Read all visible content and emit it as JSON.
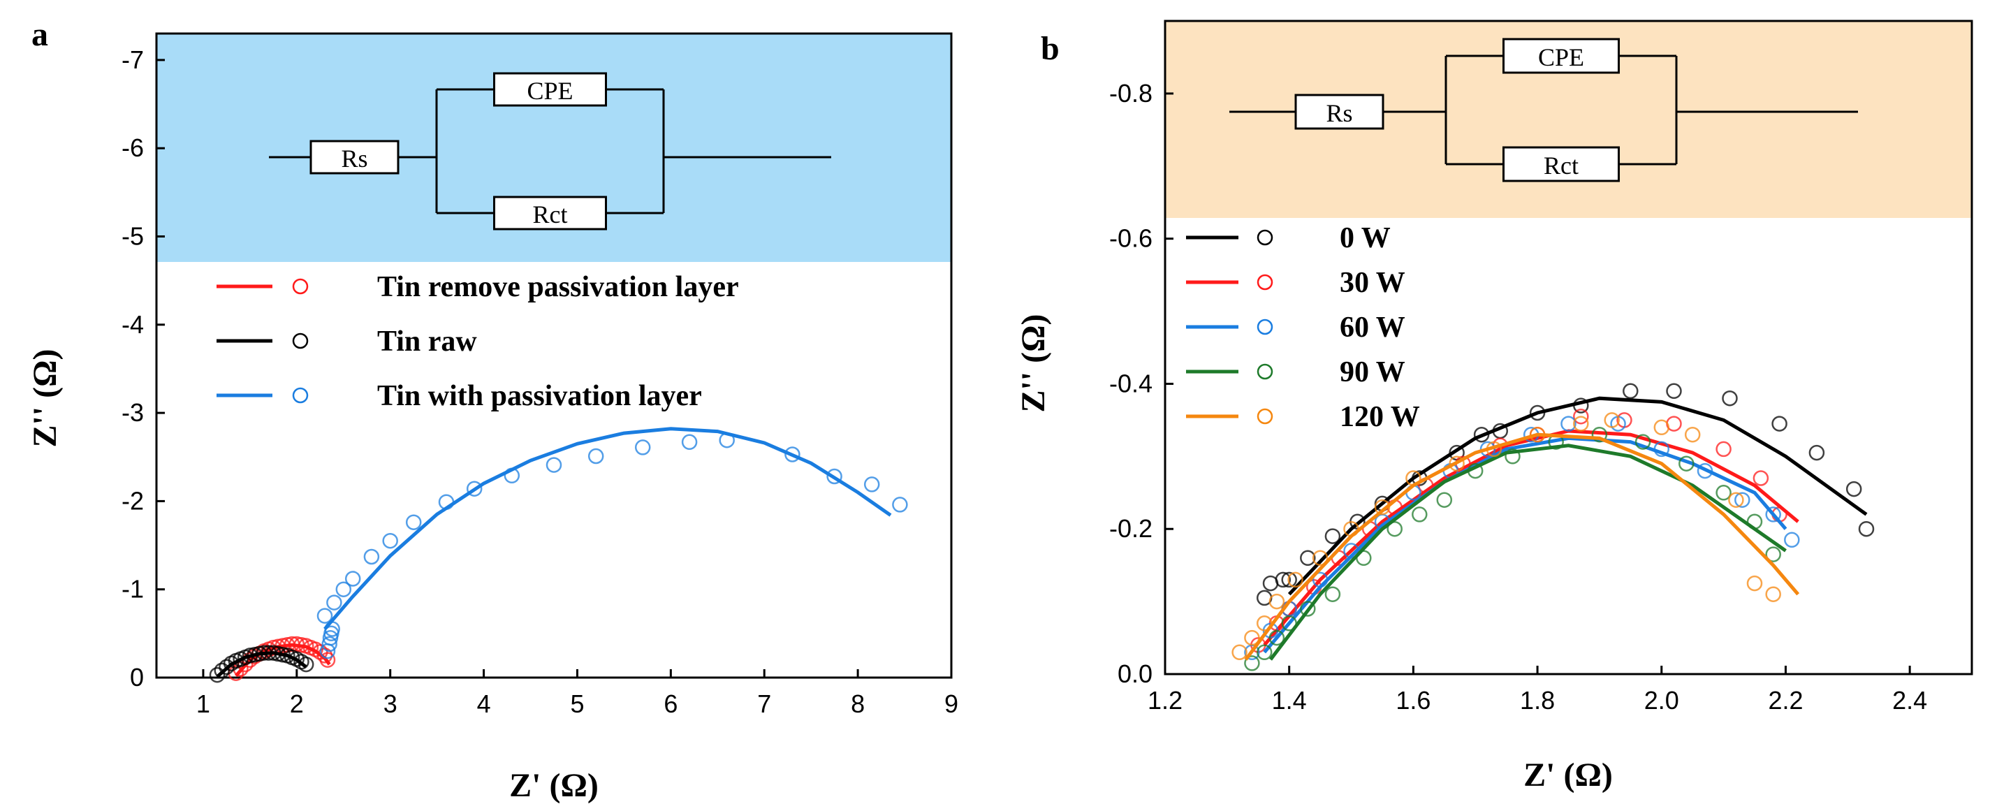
{
  "chart_data": [
    {
      "panel": "a",
      "type": "scatter",
      "xlabel": "Z' (Ω)",
      "ylabel": "Z'' (Ω)",
      "xlim": [
        0.5,
        9
      ],
      "ylim": [
        0,
        -7.3
      ],
      "xticks": [
        1,
        2,
        3,
        4,
        5,
        6,
        7,
        8,
        9
      ],
      "yticks": [
        0,
        -1,
        -2,
        -3,
        -4,
        -5,
        -6,
        -7
      ],
      "inset_color": "#a9dcf8",
      "circuit": {
        "rs": "Rs",
        "cpe": "CPE",
        "rct": "Rct"
      },
      "series": [
        {
          "name": "Tin remove passivation layer",
          "color": "#ff1a1a",
          "points": [
            [
              1.35,
              -0.05
            ],
            [
              1.4,
              -0.1
            ],
            [
              1.45,
              -0.15
            ],
            [
              1.5,
              -0.2
            ],
            [
              1.55,
              -0.24
            ],
            [
              1.6,
              -0.27
            ],
            [
              1.65,
              -0.3
            ],
            [
              1.7,
              -0.32
            ],
            [
              1.75,
              -0.34
            ],
            [
              1.8,
              -0.35
            ],
            [
              1.85,
              -0.36
            ],
            [
              1.9,
              -0.37
            ],
            [
              1.95,
              -0.38
            ],
            [
              2.0,
              -0.38
            ],
            [
              2.05,
              -0.37
            ],
            [
              2.1,
              -0.36
            ],
            [
              2.15,
              -0.34
            ],
            [
              2.2,
              -0.32
            ],
            [
              2.25,
              -0.29
            ],
            [
              2.3,
              -0.25
            ],
            [
              2.33,
              -0.2
            ]
          ],
          "fit": [
            [
              1.35,
              -0.02
            ],
            [
              1.5,
              -0.2
            ],
            [
              1.65,
              -0.3
            ],
            [
              1.8,
              -0.35
            ],
            [
              1.95,
              -0.37
            ],
            [
              2.1,
              -0.35
            ],
            [
              2.2,
              -0.3
            ],
            [
              2.3,
              -0.22
            ],
            [
              2.35,
              -0.15
            ]
          ]
        },
        {
          "name": "Tin raw",
          "color": "#000000",
          "points": [
            [
              1.15,
              -0.03
            ],
            [
              1.2,
              -0.08
            ],
            [
              1.25,
              -0.12
            ],
            [
              1.3,
              -0.16
            ],
            [
              1.35,
              -0.19
            ],
            [
              1.4,
              -0.21
            ],
            [
              1.45,
              -0.23
            ],
            [
              1.5,
              -0.25
            ],
            [
              1.55,
              -0.26
            ],
            [
              1.6,
              -0.27
            ],
            [
              1.65,
              -0.28
            ],
            [
              1.7,
              -0.28
            ],
            [
              1.75,
              -0.28
            ],
            [
              1.8,
              -0.27
            ],
            [
              1.85,
              -0.26
            ],
            [
              1.9,
              -0.25
            ],
            [
              1.95,
              -0.23
            ],
            [
              2.0,
              -0.21
            ],
            [
              2.05,
              -0.18
            ],
            [
              2.1,
              -0.15
            ]
          ],
          "fit": [
            [
              1.15,
              -0.01
            ],
            [
              1.3,
              -0.15
            ],
            [
              1.45,
              -0.23
            ],
            [
              1.6,
              -0.27
            ],
            [
              1.75,
              -0.28
            ],
            [
              1.9,
              -0.25
            ],
            [
              2.0,
              -0.2
            ],
            [
              2.1,
              -0.12
            ]
          ]
        },
        {
          "name": "Tin with passivation layer",
          "color": "#1a7de0",
          "points": [
            [
              2.33,
              -0.3
            ],
            [
              2.35,
              -0.38
            ],
            [
              2.36,
              -0.45
            ],
            [
              2.37,
              -0.5
            ],
            [
              2.38,
              -0.55
            ],
            [
              2.3,
              -0.7
            ],
            [
              2.4,
              -0.85
            ],
            [
              2.5,
              -1.0
            ],
            [
              2.6,
              -1.12
            ],
            [
              2.8,
              -1.37
            ],
            [
              3.0,
              -1.55
            ],
            [
              3.25,
              -1.76
            ],
            [
              3.6,
              -1.99
            ],
            [
              3.9,
              -2.14
            ],
            [
              4.3,
              -2.29
            ],
            [
              4.75,
              -2.41
            ],
            [
              5.2,
              -2.51
            ],
            [
              5.7,
              -2.61
            ],
            [
              6.2,
              -2.67
            ],
            [
              6.6,
              -2.69
            ],
            [
              7.3,
              -2.53
            ],
            [
              7.75,
              -2.28
            ],
            [
              8.15,
              -2.19
            ],
            [
              8.45,
              -1.96
            ]
          ],
          "fit": [
            [
              2.3,
              -0.55
            ],
            [
              2.6,
              -0.92
            ],
            [
              3.0,
              -1.38
            ],
            [
              3.5,
              -1.85
            ],
            [
              4.0,
              -2.2
            ],
            [
              4.5,
              -2.46
            ],
            [
              5.0,
              -2.65
            ],
            [
              5.5,
              -2.77
            ],
            [
              6.0,
              -2.82
            ],
            [
              6.5,
              -2.79
            ],
            [
              7.0,
              -2.66
            ],
            [
              7.5,
              -2.43
            ],
            [
              8.0,
              -2.1
            ],
            [
              8.35,
              -1.84
            ]
          ]
        }
      ]
    },
    {
      "panel": "b",
      "type": "scatter",
      "xlabel": "Z' (Ω)",
      "ylabel": "Z'' (Ω)",
      "xlim": [
        1.2,
        2.5
      ],
      "ylim": [
        0,
        -0.9
      ],
      "xticks": [
        "1.2",
        "1.4",
        "1.6",
        "1.8",
        "2.0",
        "2.2",
        "2.4"
      ],
      "yticks": [
        "0.0",
        "-0.2",
        "-0.4",
        "-0.6",
        "-0.8"
      ],
      "inset_color": "#fde3c0",
      "circuit": {
        "rs": "Rs",
        "cpe": "CPE",
        "rct": "Rct"
      },
      "series": [
        {
          "name": "0 W",
          "color": "#000000",
          "points": [
            [
              1.36,
              -0.105
            ],
            [
              1.37,
              -0.125
            ],
            [
              1.39,
              -0.13
            ],
            [
              1.4,
              -0.13
            ],
            [
              1.43,
              -0.16
            ],
            [
              1.47,
              -0.19
            ],
            [
              1.51,
              -0.21
            ],
            [
              1.55,
              -0.235
            ],
            [
              1.61,
              -0.27
            ],
            [
              1.67,
              -0.305
            ],
            [
              1.71,
              -0.33
            ],
            [
              1.74,
              -0.335
            ],
            [
              1.8,
              -0.36
            ],
            [
              1.87,
              -0.37
            ],
            [
              1.95,
              -0.39
            ],
            [
              2.02,
              -0.39
            ],
            [
              2.11,
              -0.38
            ],
            [
              2.19,
              -0.345
            ],
            [
              2.25,
              -0.305
            ],
            [
              2.31,
              -0.255
            ],
            [
              2.33,
              -0.2
            ]
          ],
          "fit": [
            [
              1.4,
              -0.11
            ],
            [
              1.5,
              -0.2
            ],
            [
              1.6,
              -0.27
            ],
            [
              1.7,
              -0.325
            ],
            [
              1.8,
              -0.36
            ],
            [
              1.9,
              -0.38
            ],
            [
              2.0,
              -0.375
            ],
            [
              2.1,
              -0.35
            ],
            [
              2.2,
              -0.3
            ],
            [
              2.33,
              -0.22
            ]
          ]
        },
        {
          "name": "30 W",
          "color": "#ff1a1a",
          "points": [
            [
              1.35,
              -0.04
            ],
            [
              1.38,
              -0.07
            ],
            [
              1.4,
              -0.09
            ],
            [
              1.44,
              -0.12
            ],
            [
              1.48,
              -0.16
            ],
            [
              1.53,
              -0.2
            ],
            [
              1.57,
              -0.23
            ],
            [
              1.62,
              -0.26
            ],
            [
              1.68,
              -0.29
            ],
            [
              1.74,
              -0.315
            ],
            [
              1.8,
              -0.33
            ],
            [
              1.87,
              -0.355
            ],
            [
              1.94,
              -0.35
            ],
            [
              2.02,
              -0.345
            ],
            [
              2.1,
              -0.31
            ],
            [
              2.16,
              -0.27
            ],
            [
              2.19,
              -0.22
            ]
          ],
          "fit": [
            [
              1.36,
              -0.04
            ],
            [
              1.45,
              -0.13
            ],
            [
              1.55,
              -0.21
            ],
            [
              1.65,
              -0.27
            ],
            [
              1.75,
              -0.315
            ],
            [
              1.85,
              -0.335
            ],
            [
              1.95,
              -0.33
            ],
            [
              2.05,
              -0.305
            ],
            [
              2.15,
              -0.26
            ],
            [
              2.22,
              -0.21
            ]
          ]
        },
        {
          "name": "60 W",
          "color": "#1a7de0",
          "points": [
            [
              1.34,
              -0.03
            ],
            [
              1.37,
              -0.06
            ],
            [
              1.4,
              -0.09
            ],
            [
              1.45,
              -0.13
            ],
            [
              1.5,
              -0.17
            ],
            [
              1.55,
              -0.21
            ],
            [
              1.6,
              -0.25
            ],
            [
              1.66,
              -0.28
            ],
            [
              1.72,
              -0.31
            ],
            [
              1.79,
              -0.33
            ],
            [
              1.85,
              -0.345
            ],
            [
              1.93,
              -0.345
            ],
            [
              2.0,
              -0.31
            ],
            [
              2.07,
              -0.28
            ],
            [
              2.13,
              -0.24
            ],
            [
              2.18,
              -0.22
            ],
            [
              2.21,
              -0.185
            ]
          ],
          "fit": [
            [
              1.36,
              -0.03
            ],
            [
              1.45,
              -0.12
            ],
            [
              1.55,
              -0.205
            ],
            [
              1.65,
              -0.265
            ],
            [
              1.75,
              -0.31
            ],
            [
              1.85,
              -0.325
            ],
            [
              1.95,
              -0.32
            ],
            [
              2.05,
              -0.29
            ],
            [
              2.15,
              -0.25
            ],
            [
              2.2,
              -0.2
            ]
          ]
        },
        {
          "name": "90 W",
          "color": "#1e7a2a",
          "points": [
            [
              1.34,
              -0.015
            ],
            [
              1.36,
              -0.03
            ],
            [
              1.38,
              -0.05
            ],
            [
              1.4,
              -0.07
            ],
            [
              1.43,
              -0.09
            ],
            [
              1.47,
              -0.11
            ],
            [
              1.52,
              -0.16
            ],
            [
              1.57,
              -0.2
            ],
            [
              1.61,
              -0.22
            ],
            [
              1.65,
              -0.24
            ],
            [
              1.7,
              -0.28
            ],
            [
              1.76,
              -0.3
            ],
            [
              1.83,
              -0.32
            ],
            [
              1.9,
              -0.33
            ],
            [
              1.97,
              -0.32
            ],
            [
              2.04,
              -0.29
            ],
            [
              2.1,
              -0.25
            ],
            [
              2.15,
              -0.21
            ],
            [
              2.18,
              -0.165
            ]
          ],
          "fit": [
            [
              1.37,
              -0.02
            ],
            [
              1.45,
              -0.11
            ],
            [
              1.55,
              -0.2
            ],
            [
              1.65,
              -0.265
            ],
            [
              1.75,
              -0.305
            ],
            [
              1.85,
              -0.315
            ],
            [
              1.95,
              -0.3
            ],
            [
              2.05,
              -0.26
            ],
            [
              2.15,
              -0.2
            ],
            [
              2.2,
              -0.17
            ]
          ]
        },
        {
          "name": "120 W",
          "color": "#f5870f",
          "points": [
            [
              1.32,
              -0.03
            ],
            [
              1.34,
              -0.05
            ],
            [
              1.36,
              -0.07
            ],
            [
              1.38,
              -0.1
            ],
            [
              1.41,
              -0.13
            ],
            [
              1.45,
              -0.16
            ],
            [
              1.5,
              -0.2
            ],
            [
              1.55,
              -0.23
            ],
            [
              1.6,
              -0.27
            ],
            [
              1.67,
              -0.29
            ],
            [
              1.73,
              -0.31
            ],
            [
              1.8,
              -0.33
            ],
            [
              1.87,
              -0.345
            ],
            [
              1.92,
              -0.35
            ],
            [
              2.0,
              -0.34
            ],
            [
              2.05,
              -0.33
            ],
            [
              2.12,
              -0.24
            ],
            [
              2.15,
              -0.125
            ],
            [
              2.18,
              -0.11
            ]
          ],
          "fit": [
            [
              1.33,
              -0.02
            ],
            [
              1.4,
              -0.1
            ],
            [
              1.5,
              -0.19
            ],
            [
              1.6,
              -0.26
            ],
            [
              1.7,
              -0.305
            ],
            [
              1.8,
              -0.33
            ],
            [
              1.9,
              -0.325
            ],
            [
              2.0,
              -0.29
            ],
            [
              2.1,
              -0.22
            ],
            [
              2.18,
              -0.15
            ],
            [
              2.22,
              -0.11
            ]
          ]
        }
      ]
    }
  ]
}
